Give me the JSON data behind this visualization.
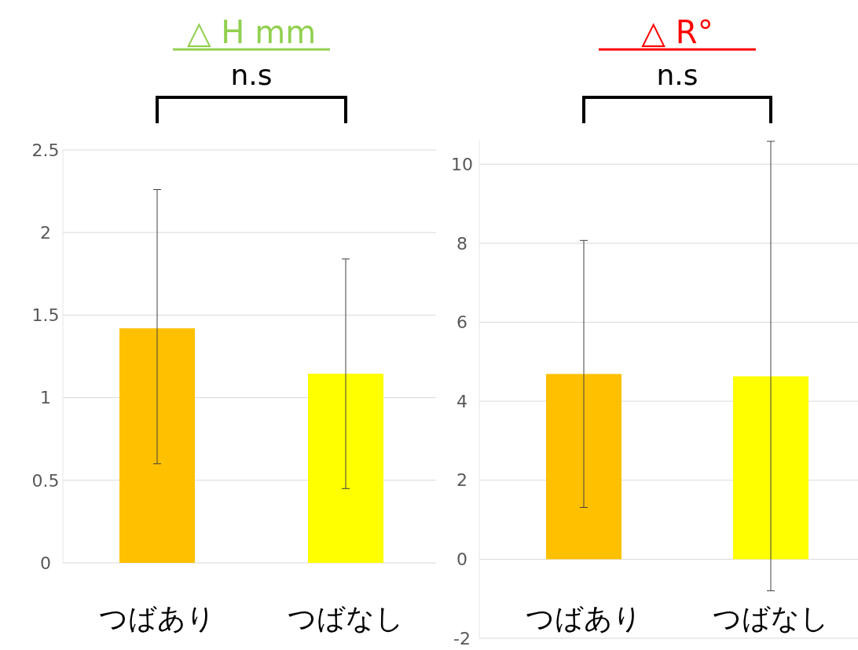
{
  "chart_data": [
    {
      "type": "bar",
      "title": "△ H mm",
      "categories": [
        "つばあり",
        "つばなし"
      ],
      "values": [
        1.42,
        1.145
      ],
      "colors": [
        "#ffc000",
        "#ffff00"
      ],
      "errors": [
        [
          0.6,
          2.26
        ],
        [
          0.45,
          1.84
        ]
      ],
      "ylim": [
        0,
        2.5
      ],
      "yticks": [
        0,
        0.5,
        1,
        1.5,
        2,
        2.5
      ],
      "grid": "y",
      "annotations": [
        "n.s"
      ]
    },
    {
      "type": "bar",
      "title": "△ R°",
      "categories": [
        "つばあり",
        "つばなし"
      ],
      "values": [
        4.69,
        4.63
      ],
      "colors": [
        "#ffc000",
        "#ffff00"
      ],
      "errors": [
        [
          1.31,
          8.07
        ],
        [
          -0.8,
          10.58
        ]
      ],
      "ylim": [
        -2,
        10.6
      ],
      "yticks": [
        -2,
        0,
        2,
        4,
        6,
        8,
        10
      ],
      "grid": "y",
      "annotations": [
        "n.s"
      ]
    }
  ]
}
